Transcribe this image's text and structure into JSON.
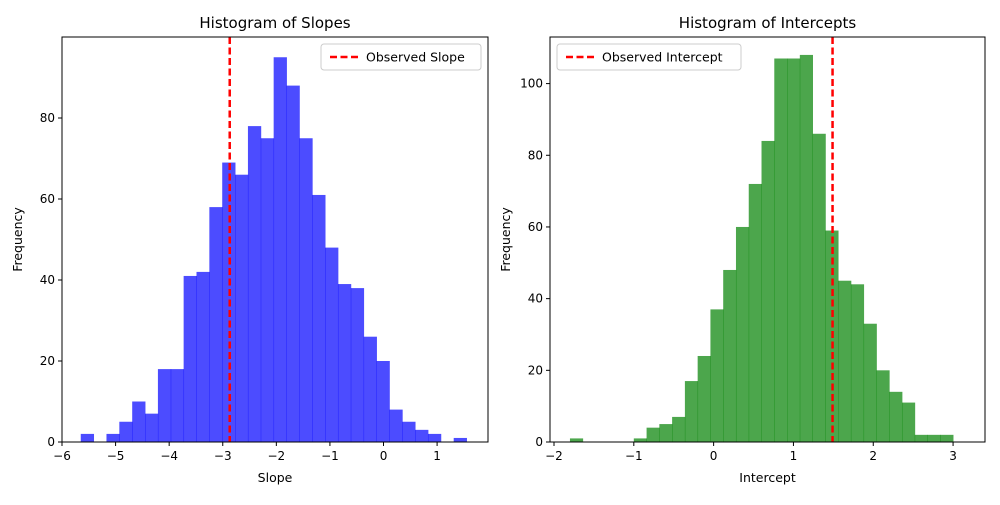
{
  "chart_data": [
    {
      "type": "bar",
      "title": "Histogram of Slopes",
      "xlabel": "Slope",
      "ylabel": "Frequency",
      "bar_color": "#0000ff",
      "line_color": "#ff0000",
      "xlim": [
        -6.0,
        1.95
      ],
      "ylim": [
        0,
        100
      ],
      "xticks": [
        -6,
        -5,
        -4,
        -3,
        -2,
        -1,
        0,
        1
      ],
      "xtick_labels": [
        "−6",
        "−5",
        "−4",
        "−3",
        "−2",
        "−1",
        "0",
        "1"
      ],
      "yticks": [
        0,
        20,
        40,
        60,
        80
      ],
      "ytick_labels": [
        "0",
        "20",
        "40",
        "60",
        "80"
      ],
      "bin_edges": [
        -5.65,
        -5.41,
        -5.17,
        -4.93,
        -4.69,
        -4.45,
        -4.21,
        -3.97,
        -3.73,
        -3.49,
        -3.25,
        -3.01,
        -2.77,
        -2.53,
        -2.29,
        -2.05,
        -1.81,
        -1.57,
        -1.33,
        -1.09,
        -0.85,
        -0.61,
        -0.37,
        -0.13,
        0.11,
        0.35,
        0.59,
        0.83,
        1.07,
        1.31,
        1.55
      ],
      "values": [
        2,
        0,
        2,
        5,
        10,
        7,
        18,
        18,
        41,
        42,
        58,
        69,
        66,
        78,
        75,
        95,
        88,
        75,
        61,
        48,
        39,
        38,
        26,
        20,
        8,
        5,
        3,
        2,
        0,
        1
      ],
      "observed_value": -2.87,
      "legend": {
        "label": "Observed Slope",
        "placement": "upper-right"
      }
    },
    {
      "type": "bar",
      "title": "Histogram of Intercepts",
      "xlabel": "Intercept",
      "ylabel": "Frequency",
      "bar_color": "#008000",
      "line_color": "#ff0000",
      "xlim": [
        -2.05,
        3.4
      ],
      "ylim": [
        0,
        113
      ],
      "xticks": [
        -2,
        -1,
        0,
        1,
        2,
        3
      ],
      "xtick_labels": [
        "−2",
        "−1",
        "0",
        "1",
        "2",
        "3"
      ],
      "yticks": [
        0,
        20,
        40,
        60,
        80,
        100
      ],
      "ytick_labels": [
        "0",
        "20",
        "40",
        "60",
        "80",
        "100"
      ],
      "bin_edges": [
        -1.8,
        -1.64,
        -1.48,
        -1.32,
        -1.16,
        -1.0,
        -0.84,
        -0.68,
        -0.52,
        -0.36,
        -0.2,
        -0.04,
        0.12,
        0.28,
        0.44,
        0.6,
        0.76,
        0.92,
        1.08,
        1.24,
        1.4,
        1.56,
        1.72,
        1.88,
        2.04,
        2.2,
        2.36,
        2.52,
        2.68,
        2.84,
        3.0
      ],
      "values": [
        1,
        0,
        0,
        0,
        0,
        1,
        4,
        5,
        7,
        17,
        24,
        37,
        48,
        60,
        72,
        84,
        107,
        107,
        108,
        86,
        59,
        45,
        44,
        33,
        20,
        14,
        11,
        2,
        2,
        2
      ],
      "observed_value": 1.49,
      "legend": {
        "label": "Observed Intercept",
        "placement": "upper-left"
      }
    }
  ]
}
